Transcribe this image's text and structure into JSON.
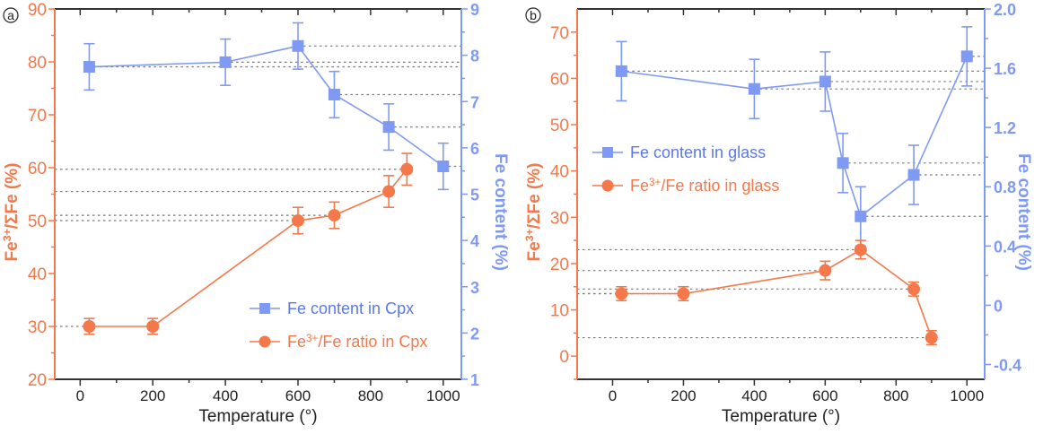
{
  "colors": {
    "fe_content": "#7f9af4",
    "fe_content_text": "#5c78e6",
    "fe_ratio": "#f4784a",
    "axis_dark": "#333333",
    "reference_line": "#777777"
  },
  "chart_data": [
    {
      "type": "line",
      "panel_label": "a",
      "title": "",
      "xlabel": "Temperature (°)",
      "ylabel": "Fe3+/ΣFe (%)",
      "ylabel_right": "Fe content (%)",
      "xlim": [
        -70,
        1050
      ],
      "ylim": [
        20,
        90
      ],
      "ylim_right": [
        1,
        9
      ],
      "xticks": [
        0,
        200,
        400,
        600,
        800,
        1000
      ],
      "xtick_labels": [
        "0",
        "200",
        "400",
        "600",
        "800",
        "1000"
      ],
      "yticks": [
        20,
        30,
        40,
        50,
        60,
        70,
        80,
        90
      ],
      "ytick_labels": [
        "20",
        "30",
        "40",
        "50",
        "60",
        "70",
        "80",
        "90"
      ],
      "yticks_right": [
        1,
        2,
        3,
        4,
        5,
        6,
        7,
        8,
        9
      ],
      "ytick_labels_right": [
        "1",
        "2",
        "3",
        "4",
        "5",
        "6",
        "7",
        "8",
        "9"
      ],
      "grid": false,
      "legend_position": "bottom-right",
      "series": [
        {
          "name": "Fe content in Cpx",
          "axis": "right",
          "marker": "square",
          "x": [
            25,
            400,
            600,
            700,
            850,
            1000
          ],
          "y": [
            7.75,
            7.85,
            8.2,
            7.15,
            6.45,
            5.6
          ],
          "error": [
            0.5,
            0.5,
            0.5,
            0.5,
            0.5,
            0.5
          ],
          "reference_lines_to": "right"
        },
        {
          "name": "Fe3+/Fe ratio in Cpx",
          "axis": "left",
          "marker": "circle",
          "x": [
            25,
            200,
            600,
            700,
            850,
            900
          ],
          "y": [
            30,
            30,
            50,
            51,
            55.5,
            59.7
          ],
          "error": [
            1.5,
            1.5,
            2.5,
            2.5,
            3,
            3
          ],
          "reference_lines_to": "left"
        }
      ]
    },
    {
      "type": "line",
      "panel_label": "b",
      "title": "",
      "xlabel": "Temperature (°)",
      "ylabel": "Fe3+/ΣFe (%)",
      "ylabel_right": "Fe content (%)",
      "xlim": [
        -100,
        1050
      ],
      "ylim": [
        -5,
        75
      ],
      "ylim_right": [
        -0.5,
        2.0
      ],
      "xticks": [
        0,
        200,
        400,
        600,
        800,
        1000
      ],
      "xtick_labels": [
        "0",
        "200",
        "400",
        "600",
        "800",
        "1000"
      ],
      "yticks": [
        0,
        10,
        20,
        30,
        40,
        50,
        60,
        70
      ],
      "ytick_labels": [
        "0",
        "10",
        "20",
        "30",
        "40",
        "50",
        "60",
        "70"
      ],
      "yticks_right": [
        -0.4,
        0,
        0.4,
        0.8,
        1.2,
        1.6,
        2.0
      ],
      "ytick_labels_right": [
        "-0.4",
        "0",
        "0.4",
        "0.8",
        "1.2",
        "1.6",
        "2.0"
      ],
      "grid": false,
      "legend_position": "middle-left",
      "series": [
        {
          "name": "Fe content in glass",
          "axis": "right",
          "marker": "square",
          "x": [
            25,
            400,
            600,
            650,
            700,
            850,
            1000
          ],
          "y": [
            1.58,
            1.46,
            1.51,
            0.96,
            0.6,
            0.88,
            1.68
          ],
          "error": [
            0.2,
            0.2,
            0.2,
            0.2,
            0.2,
            0.2,
            0.2
          ],
          "reference_lines_to": "right"
        },
        {
          "name": "Fe3+/Fe ratio in glass",
          "axis": "left",
          "marker": "circle",
          "x": [
            25,
            200,
            600,
            700,
            850,
            900
          ],
          "y": [
            13.5,
            13.5,
            18.5,
            23,
            14.5,
            4
          ],
          "error": [
            1.5,
            1.5,
            2,
            2,
            1.5,
            1.5
          ],
          "reference_lines_to": "left"
        }
      ]
    }
  ]
}
